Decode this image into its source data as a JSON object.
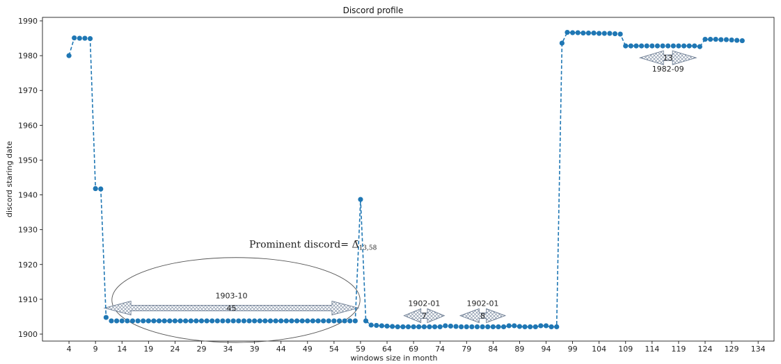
{
  "chart_data": {
    "type": "line",
    "title": "Discord profile",
    "xlabel": "windows size in month",
    "ylabel": "discord staring date",
    "xlim": [
      -1,
      137
    ],
    "ylim": [
      1898,
      1991
    ],
    "xticks": [
      4,
      9,
      14,
      19,
      24,
      29,
      34,
      39,
      44,
      49,
      54,
      59,
      64,
      69,
      74,
      79,
      84,
      89,
      94,
      99,
      104,
      109,
      114,
      119,
      124,
      129,
      134
    ],
    "yticks": [
      1900,
      1910,
      1920,
      1930,
      1940,
      1950,
      1960,
      1970,
      1980,
      1990
    ],
    "grid": false,
    "line_style": "dashed",
    "marker": "circle",
    "series_color": "#1f77b4",
    "series": [
      {
        "x": [
          4,
          5,
          6,
          7,
          8,
          9,
          10,
          11,
          12,
          13,
          14,
          15,
          16,
          17,
          18,
          19,
          20,
          21,
          22,
          23,
          24,
          25,
          26,
          27,
          28,
          29,
          30,
          31,
          32,
          33,
          34,
          35,
          36,
          37,
          38,
          39,
          40,
          41,
          42,
          43,
          44,
          45,
          46,
          47,
          48,
          49,
          50,
          51,
          52,
          53,
          54,
          55,
          56,
          57,
          58,
          59,
          60,
          61,
          62,
          63,
          64,
          65,
          66,
          67,
          68,
          69,
          70,
          71,
          72,
          73,
          74,
          75,
          76,
          77,
          78,
          79,
          80,
          81,
          82,
          83,
          84,
          85,
          86,
          87,
          88,
          89,
          90,
          91,
          92,
          93,
          94,
          95,
          96,
          97,
          98,
          99,
          100,
          101,
          102,
          103,
          104,
          105,
          106,
          107,
          108,
          109,
          110,
          111,
          112,
          113,
          114,
          115,
          116,
          117,
          118,
          119,
          120,
          121,
          122,
          123,
          124,
          125,
          126,
          127,
          128,
          129,
          130,
          131
        ],
        "y": [
          1980,
          1985.1,
          1985,
          1985,
          1984.9,
          1941.8,
          1941.7,
          1904.8,
          1903.8,
          1903.8,
          1903.8,
          1903.8,
          1903.8,
          1903.8,
          1903.8,
          1903.8,
          1903.8,
          1903.8,
          1903.8,
          1903.8,
          1903.8,
          1903.8,
          1903.8,
          1903.8,
          1903.8,
          1903.8,
          1903.8,
          1903.8,
          1903.8,
          1903.8,
          1903.8,
          1903.8,
          1903.8,
          1903.8,
          1903.8,
          1903.8,
          1903.8,
          1903.8,
          1903.8,
          1903.8,
          1903.8,
          1903.8,
          1903.8,
          1903.8,
          1903.8,
          1903.8,
          1903.8,
          1903.8,
          1903.8,
          1903.8,
          1903.8,
          1903.8,
          1903.8,
          1903.8,
          1903.8,
          1938.7,
          1903.8,
          1902.6,
          1902.5,
          1902.4,
          1902.3,
          1902.2,
          1902.1,
          1902.1,
          1902.1,
          1902.1,
          1902.1,
          1902.1,
          1902.1,
          1902.1,
          1902.1,
          1902.4,
          1902.3,
          1902.2,
          1902.1,
          1902.1,
          1902.1,
          1902.1,
          1902.1,
          1902.1,
          1902.1,
          1902.1,
          1902.1,
          1902.4,
          1902.4,
          1902.2,
          1902.1,
          1902.1,
          1902.1,
          1902.4,
          1902.4,
          1902.1,
          1902.1,
          1983.6,
          1986.7,
          1986.6,
          1986.6,
          1986.5,
          1986.5,
          1986.5,
          1986.4,
          1986.4,
          1986.4,
          1986.3,
          1986.2,
          1982.8,
          1982.8,
          1982.8,
          1982.8,
          1982.8,
          1982.8,
          1982.8,
          1982.8,
          1982.8,
          1982.8,
          1982.8,
          1982.8,
          1982.8,
          1982.8,
          1982.6,
          1984.7,
          1984.7,
          1984.7,
          1984.6,
          1984.6,
          1984.5,
          1984.4,
          1984.3
        ]
      }
    ],
    "annotations": [
      {
        "label": "1903-10",
        "count": "45",
        "x_start": 10.7,
        "x_end": 58.6,
        "y": 1907.5
      },
      {
        "label": "1902-01",
        "count": "7",
        "x_start": 67.2,
        "x_end": 74.8,
        "y": 1905.3
      },
      {
        "label": "1902-01",
        "count": "8",
        "x_start": 77.8,
        "x_end": 86.3,
        "y": 1905.3
      },
      {
        "label": "1982-09",
        "count": "13",
        "x_start": 111.7,
        "x_end": 122.3,
        "y": 1979.4
      }
    ],
    "prominent": {
      "text_prefix": "Prominent discord= ",
      "symbol": "Δ̄",
      "subscript": "13,58",
      "text_x": 38,
      "text_y": 1924.8,
      "ellipse_cx": 35.5,
      "ellipse_cy": 1909.8,
      "ellipse_rx": 23.4,
      "ellipse_ry": 12.2
    }
  }
}
